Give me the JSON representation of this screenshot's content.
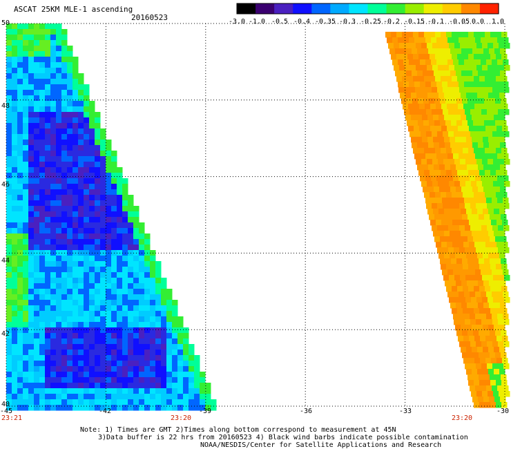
{
  "header": {
    "title": "ASCAT 25KM MLE-1 ascending",
    "date": "20160523"
  },
  "colorbar": {
    "ticks": [
      "-3.0",
      "-1.0",
      "-0.5",
      "-0.4",
      "-0.35",
      "-0.3",
      "-0.25",
      "-0.2",
      "-0.15",
      "-0.1",
      "-0.05",
      "0.0",
      "1.0"
    ],
    "colors": [
      "#000000",
      "#3a0070",
      "#4a20c0",
      "#1010ff",
      "#0066ff",
      "#00aaff",
      "#00e5ff",
      "#00ff99",
      "#33ee33",
      "#99ee00",
      "#eeee00",
      "#ffcc00",
      "#ff8800",
      "#ff2200"
    ]
  },
  "map": {
    "lat_labels": [
      "50",
      "48",
      "46",
      "44",
      "42",
      "40"
    ],
    "lon_labels": [
      "-45",
      "-42",
      "-39",
      "-36",
      "-33",
      "-30"
    ],
    "time_labels": [
      "23:21",
      "23:20",
      "23:20"
    ],
    "lon_range": [
      -45,
      -30
    ],
    "lat_range": [
      40,
      50
    ],
    "grid": true
  },
  "notes": {
    "line1": "Note: 1) Times are GMT 2)Times along bottom correspond to measurement at 45N",
    "line2": "3)Data buffer is 22 hrs from 20160523 4) Black wind barbs indicate possible contamination",
    "line3": "NOAA/NESDIS/Center for Satellite Applications and Research"
  }
}
